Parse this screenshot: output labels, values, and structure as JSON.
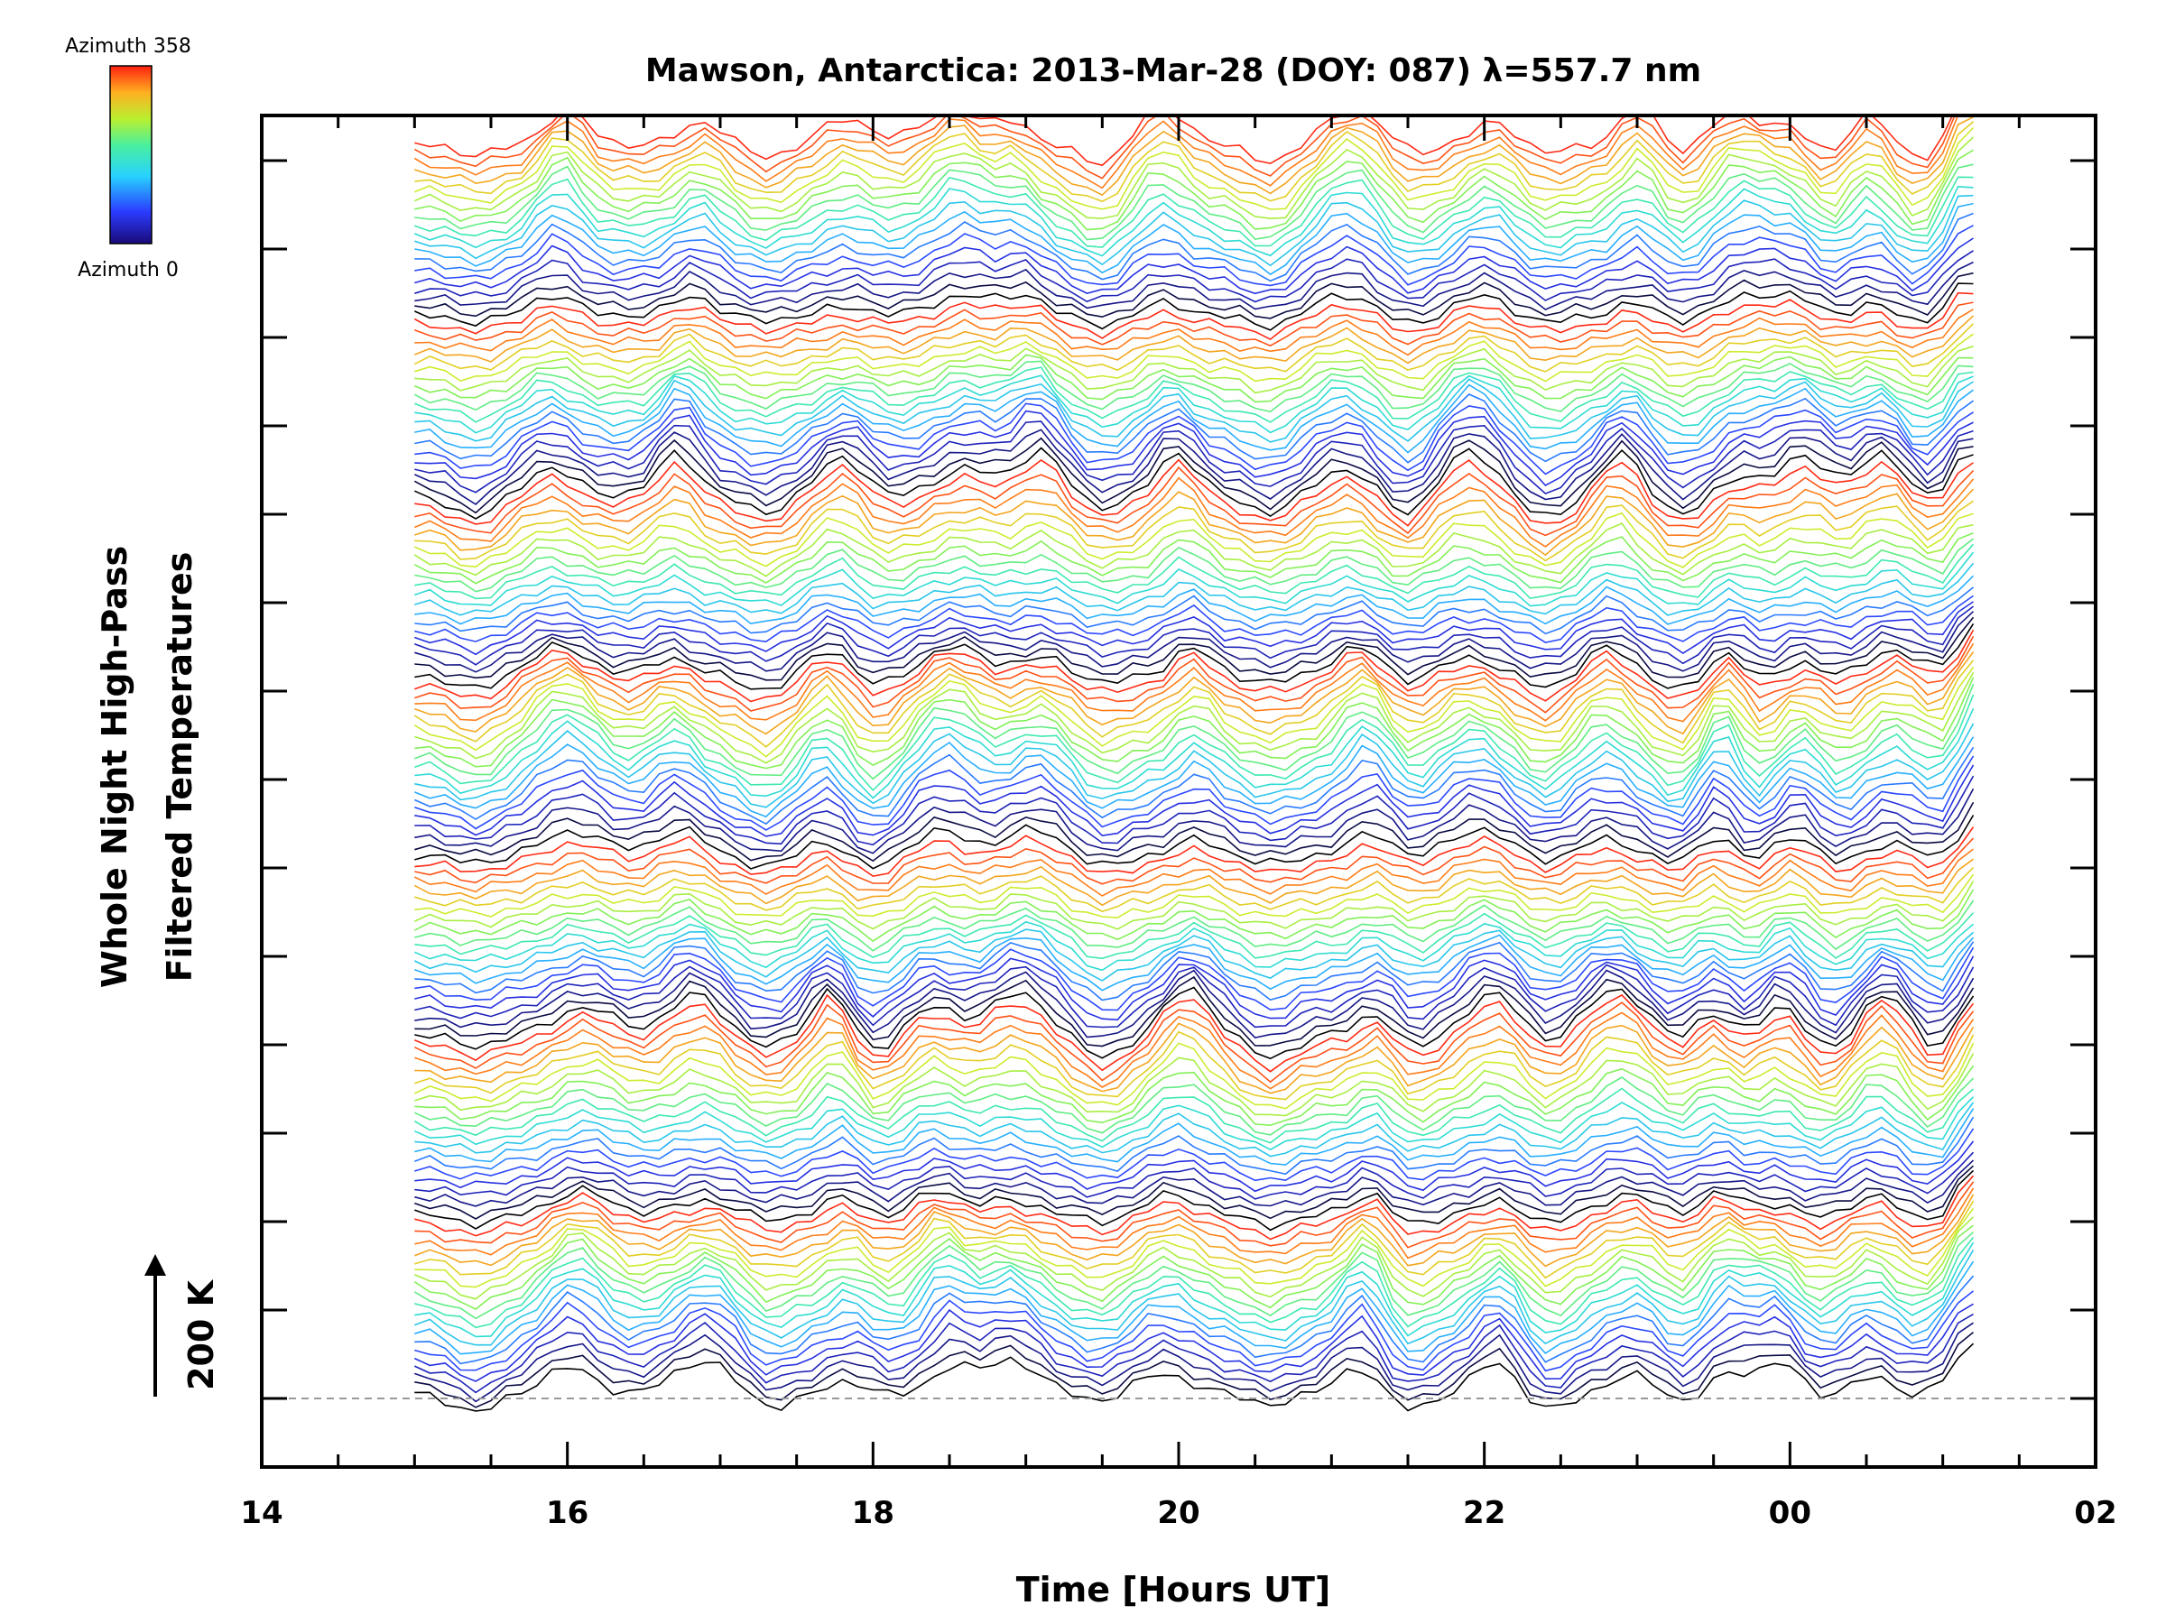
{
  "chart_data": {
    "type": "line",
    "title": "Mawson, Antarctica: 2013-Mar-28 (DOY: 087) λ=557.7 nm",
    "xlabel": "Time [Hours UT]",
    "ylabel_line1": "Whole Night High-Pass",
    "ylabel_line2": "Filtered Temperatures",
    "xlim": [
      14,
      26
    ],
    "x_tick_labels": [
      "14",
      "16",
      "18",
      "20",
      "22",
      "00",
      "02"
    ],
    "data_x_range": [
      15.0,
      25.2
    ],
    "scale_label": "200 K",
    "colorbar": {
      "top_label": "Azimuth 358",
      "bottom_label": "Azimuth 0",
      "azimuth_range": [
        0,
        358
      ]
    },
    "grid": false,
    "baseline_dashed": true,
    "series_description": "stacked high-pass filtered temperature traces, one per azimuth sector, color-coded by azimuth",
    "series_count": 140,
    "offset_per_series_kelvin": 16,
    "peak_times_hours": [
      16.0,
      16.8,
      17.8,
      18.5,
      19.0,
      20.0,
      21.2,
      22.0,
      22.9,
      23.6,
      24.0,
      24.6,
      25.2
    ],
    "trough_times_hours": [
      15.4,
      17.3,
      18.0,
      19.5,
      20.6,
      21.5,
      22.4,
      23.3,
      23.8,
      24.3,
      24.9
    ]
  },
  "colors": {
    "spectrum": [
      "#000000",
      "#1a1aa0",
      "#2b3cff",
      "#28b4ff",
      "#2ee6c8",
      "#7ef05a",
      "#d6ec2a",
      "#ff8c1a",
      "#ff2a14"
    ]
  }
}
